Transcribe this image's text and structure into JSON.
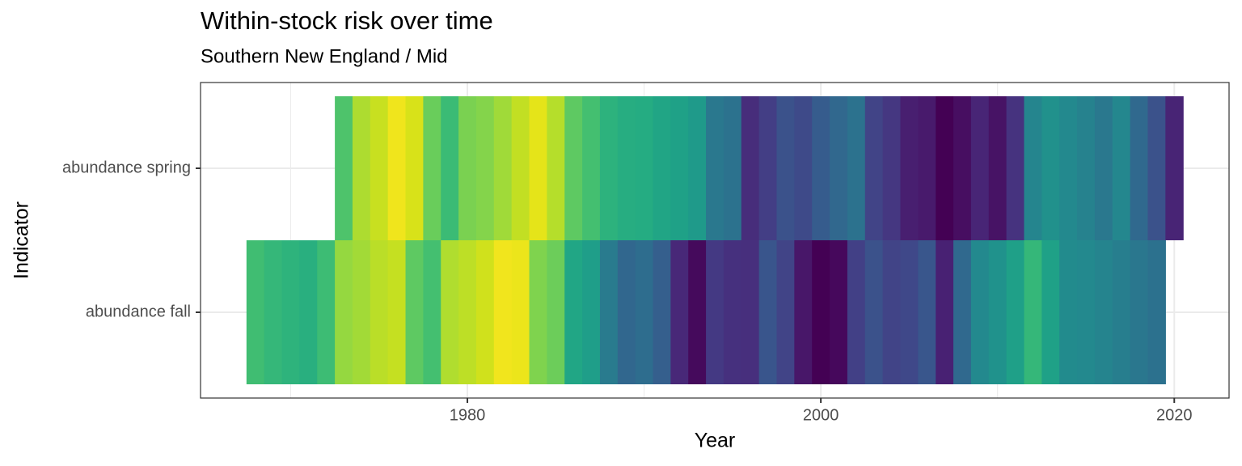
{
  "chart_data": {
    "type": "heatmap",
    "title": "Within-stock risk over time",
    "subtitle": "Southern New England / Mid",
    "x_label": "Year",
    "y_label": "Indicator",
    "xlim": [
      1964.9,
      2023.1
    ],
    "xticks": [
      1980,
      2000,
      2020
    ],
    "xminorticks": [
      1970,
      1990,
      2010
    ],
    "grid": true,
    "series": [
      {
        "name": "abundance fall",
        "x": [
          1968,
          1969,
          1970,
          1971,
          1972,
          1973,
          1974,
          1975,
          1976,
          1977,
          1978,
          1979,
          1980,
          1981,
          1982,
          1983,
          1984,
          1985,
          1986,
          1987,
          1988,
          1989,
          1990,
          1991,
          1992,
          1993,
          1994,
          1995,
          1996,
          1997,
          1998,
          1999,
          2000,
          2001,
          2002,
          2003,
          2004,
          2005,
          2006,
          2007,
          2008,
          2009,
          2010,
          2011,
          2012,
          2013,
          2014,
          2015,
          2016,
          2017,
          2018,
          2019
        ],
        "colors": [
          "#40bd72",
          "#35b779",
          "#2eb37c",
          "#29af7f",
          "#3dbc74",
          "#95d840",
          "#a2da37",
          "#bade28",
          "#c5e021",
          "#5ec962",
          "#44bf70",
          "#b0dd2f",
          "#bddf26",
          "#d0e11c",
          "#f1e51d",
          "#ece51b",
          "#7fd34e",
          "#6ccd5a",
          "#21a685",
          "#1f9e89",
          "#297b8e",
          "#31678e",
          "#2e6d8e",
          "#355f8d",
          "#482878",
          "#450a5c",
          "#443983",
          "#46307e",
          "#472f7d",
          "#39558c",
          "#414487",
          "#481769",
          "#440154",
          "#46085c",
          "#424086",
          "#3b528b",
          "#414487",
          "#3f4889",
          "#39568c",
          "#482173",
          "#30698e",
          "#23898e",
          "#20928c",
          "#1fa088",
          "#35b779",
          "#1fa187",
          "#228b8d",
          "#23898e",
          "#25848e",
          "#277e8e",
          "#2a778e",
          "#2c718e"
        ]
      },
      {
        "name": "abundance spring",
        "x": [
          1973,
          1974,
          1975,
          1976,
          1977,
          1978,
          1979,
          1980,
          1981,
          1982,
          1983,
          1984,
          1985,
          1986,
          1987,
          1988,
          1989,
          1990,
          1991,
          1992,
          1993,
          1994,
          1995,
          1996,
          1997,
          1998,
          1999,
          2000,
          2001,
          2002,
          2003,
          2004,
          2005,
          2006,
          2007,
          2008,
          2009,
          2010,
          2011,
          2012,
          2013,
          2014,
          2015,
          2016,
          2017,
          2018,
          2019,
          2020
        ],
        "colors": [
          "#4ec36b",
          "#addc30",
          "#c8e020",
          "#f0e51c",
          "#d8e219",
          "#69cd5b",
          "#3bbb75",
          "#7ad151",
          "#84d44b",
          "#a0da39",
          "#c2df23",
          "#e5e419",
          "#b5de2b",
          "#5ec962",
          "#44bf70",
          "#2db27d",
          "#27ad81",
          "#25ac82",
          "#21a585",
          "#1fa187",
          "#1f9a8a",
          "#2a788e",
          "#2c728e",
          "#472d7b",
          "#433e85",
          "#3b528b",
          "#3e4a89",
          "#365c8d",
          "#31688e",
          "#2c728e",
          "#414487",
          "#453781",
          "#481f70",
          "#481a6c",
          "#440154",
          "#470e61",
          "#482576",
          "#471365",
          "#46337f",
          "#25858e",
          "#21918c",
          "#23898e",
          "#26828e",
          "#2a788e",
          "#24878e",
          "#30698e",
          "#3b528b",
          "#482475"
        ]
      }
    ]
  }
}
